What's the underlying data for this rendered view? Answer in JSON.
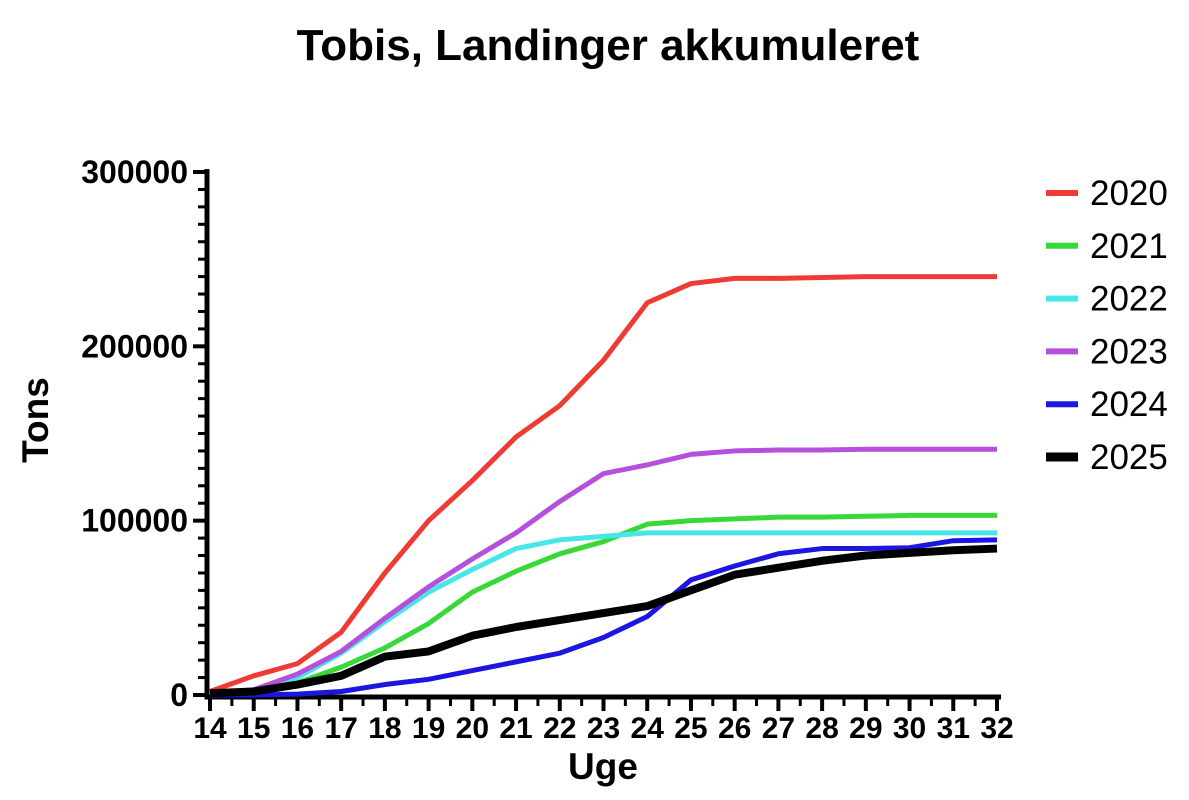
{
  "chart_data": {
    "type": "line",
    "title": "Tobis, Landinger akkumuleret",
    "xlabel": "Uge",
    "ylabel": "Tons",
    "x": [
      14,
      15,
      16,
      17,
      18,
      19,
      20,
      21,
      22,
      23,
      24,
      25,
      26,
      27,
      28,
      29,
      30,
      31,
      32
    ],
    "xlim": [
      14,
      32
    ],
    "ylim": [
      0,
      300000
    ],
    "xticks": [
      14,
      15,
      16,
      17,
      18,
      19,
      20,
      21,
      22,
      23,
      24,
      25,
      26,
      27,
      28,
      29,
      30,
      31,
      32
    ],
    "yticks": [
      0,
      100000,
      200000,
      300000
    ],
    "x_minor_step": 0.5,
    "y_minor_step": 10000,
    "grid": false,
    "legend_position": "right",
    "axis_color": "#000000",
    "background_color": "#ffffff",
    "series": [
      {
        "name": "2020",
        "color": "#ee3b34",
        "line_width": 5,
        "values": [
          2000,
          11000,
          18000,
          36000,
          70000,
          100000,
          123000,
          148000,
          166000,
          192000,
          225000,
          236000,
          239000,
          239000,
          239500,
          240000,
          240000,
          240000,
          240000
        ]
      },
      {
        "name": "2021",
        "color": "#39d839",
        "line_width": 5,
        "values": [
          1000,
          2000,
          7000,
          16000,
          27000,
          41000,
          59000,
          71000,
          81000,
          88000,
          98000,
          100000,
          101000,
          102000,
          102000,
          102500,
          103000,
          103000,
          103000
        ]
      },
      {
        "name": "2022",
        "color": "#48e6e6",
        "line_width": 5,
        "values": [
          1000,
          2000,
          10000,
          24000,
          42000,
          59000,
          72000,
          84000,
          89000,
          91000,
          93000,
          93000,
          93000,
          93000,
          93000,
          93000,
          93000,
          93000,
          93000
        ]
      },
      {
        "name": "2023",
        "color": "#b450dc",
        "line_width": 5,
        "values": [
          1000,
          3000,
          12000,
          25000,
          44000,
          62000,
          78000,
          93000,
          111000,
          127000,
          132000,
          138000,
          140000,
          140500,
          140500,
          141000,
          141000,
          141000,
          141000
        ]
      },
      {
        "name": "2024",
        "color": "#1c16e0",
        "line_width": 5,
        "values": [
          0,
          0,
          500,
          2000,
          6000,
          9000,
          14000,
          19000,
          24000,
          33000,
          45000,
          66000,
          74000,
          81000,
          84000,
          84000,
          84500,
          88500,
          89000
        ]
      },
      {
        "name": "2025",
        "color": "#000000",
        "line_width": 8,
        "values": [
          1000,
          2000,
          6000,
          11000,
          22000,
          25000,
          34000,
          39000,
          43000,
          47000,
          51000,
          60000,
          69000,
          73000,
          77000,
          80000,
          81500,
          83000,
          84000
        ]
      }
    ]
  }
}
